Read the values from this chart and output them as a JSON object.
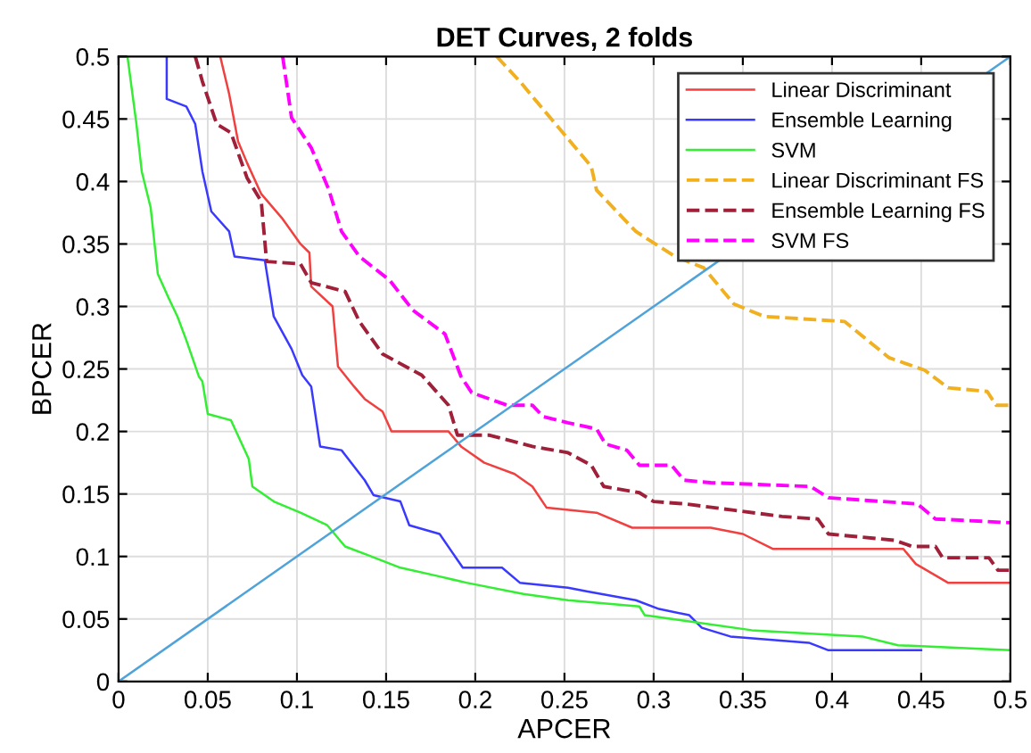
{
  "chart_data": {
    "type": "line",
    "title": "DET Curves, 2 folds",
    "xlabel": "APCER",
    "ylabel": "BPCER",
    "xlim": [
      0,
      0.5
    ],
    "ylim": [
      0,
      0.5
    ],
    "xticks": [
      0,
      0.05,
      0.1,
      0.15,
      0.2,
      0.25,
      0.3,
      0.35,
      0.4,
      0.45,
      0.5
    ],
    "yticks": [
      0,
      0.05,
      0.1,
      0.15,
      0.2,
      0.25,
      0.3,
      0.35,
      0.4,
      0.45,
      0.5
    ],
    "grid": true,
    "legend": "top right",
    "series": [
      {
        "name": "Linear Discriminant",
        "color": "#f04040",
        "line_style": "solid",
        "x": [
          0.057,
          0.062,
          0.067,
          0.072,
          0.08,
          0.092,
          0.102,
          0.107,
          0.108,
          0.12,
          0.123,
          0.132,
          0.138,
          0.148,
          0.153,
          0.185,
          0.192,
          0.205,
          0.222,
          0.232,
          0.24,
          0.268,
          0.288,
          0.332,
          0.35,
          0.367,
          0.44,
          0.447,
          0.465,
          0.5
        ],
        "values": [
          0.5,
          0.47,
          0.432,
          0.415,
          0.39,
          0.37,
          0.35,
          0.343,
          0.316,
          0.3,
          0.252,
          0.236,
          0.226,
          0.216,
          0.2,
          0.2,
          0.188,
          0.175,
          0.166,
          0.156,
          0.139,
          0.135,
          0.123,
          0.123,
          0.118,
          0.106,
          0.106,
          0.094,
          0.079,
          0.079
        ]
      },
      {
        "name": "Ensemble Learning",
        "color": "#3a3aff",
        "line_style": "solid",
        "x": [
          0.027,
          0.027,
          0.038,
          0.043,
          0.047,
          0.052,
          0.062,
          0.065,
          0.082,
          0.087,
          0.097,
          0.103,
          0.108,
          0.113,
          0.125,
          0.138,
          0.143,
          0.158,
          0.163,
          0.18,
          0.193,
          0.215,
          0.225,
          0.252,
          0.263,
          0.29,
          0.303,
          0.32,
          0.327,
          0.343,
          0.387,
          0.398,
          0.45
        ],
        "values": [
          0.5,
          0.466,
          0.46,
          0.446,
          0.408,
          0.376,
          0.36,
          0.34,
          0.337,
          0.292,
          0.266,
          0.245,
          0.236,
          0.188,
          0.185,
          0.161,
          0.149,
          0.144,
          0.125,
          0.118,
          0.091,
          0.091,
          0.079,
          0.075,
          0.072,
          0.065,
          0.058,
          0.053,
          0.043,
          0.036,
          0.031,
          0.025,
          0.025
        ]
      },
      {
        "name": "SVM",
        "color": "#33ee33",
        "line_style": "solid",
        "x": [
          0.005,
          0.01,
          0.013,
          0.018,
          0.022,
          0.028,
          0.033,
          0.038,
          0.045,
          0.047,
          0.05,
          0.063,
          0.073,
          0.075,
          0.087,
          0.102,
          0.117,
          0.127,
          0.14,
          0.158,
          0.18,
          0.195,
          0.227,
          0.252,
          0.292,
          0.295,
          0.32,
          0.355,
          0.417,
          0.437,
          0.5
        ],
        "values": [
          0.5,
          0.446,
          0.408,
          0.379,
          0.326,
          0.307,
          0.292,
          0.273,
          0.244,
          0.24,
          0.214,
          0.209,
          0.178,
          0.156,
          0.144,
          0.135,
          0.125,
          0.108,
          0.101,
          0.091,
          0.084,
          0.079,
          0.07,
          0.065,
          0.06,
          0.053,
          0.048,
          0.041,
          0.036,
          0.029,
          0.025
        ]
      },
      {
        "name": "Linear Discriminant FS",
        "color": "#f0b020",
        "line_style": "dashed",
        "x": [
          0.212,
          0.225,
          0.245,
          0.265,
          0.268,
          0.29,
          0.312,
          0.328,
          0.345,
          0.362,
          0.407,
          0.432,
          0.452,
          0.465,
          0.487,
          0.492,
          0.5
        ],
        "values": [
          0.5,
          0.48,
          0.446,
          0.412,
          0.393,
          0.36,
          0.34,
          0.331,
          0.302,
          0.292,
          0.288,
          0.259,
          0.249,
          0.235,
          0.232,
          0.221,
          0.221
        ]
      },
      {
        "name": "Ensemble Learning FS",
        "color": "#a0203a",
        "line_style": "dashed",
        "x": [
          0.043,
          0.047,
          0.055,
          0.063,
          0.072,
          0.08,
          0.083,
          0.102,
          0.108,
          0.127,
          0.135,
          0.148,
          0.17,
          0.185,
          0.19,
          0.208,
          0.232,
          0.252,
          0.265,
          0.272,
          0.292,
          0.3,
          0.318,
          0.345,
          0.372,
          0.392,
          0.398,
          0.435,
          0.445,
          0.458,
          0.462,
          0.488,
          0.493,
          0.5
        ],
        "values": [
          0.5,
          0.48,
          0.446,
          0.439,
          0.403,
          0.384,
          0.336,
          0.334,
          0.319,
          0.312,
          0.288,
          0.262,
          0.245,
          0.221,
          0.197,
          0.197,
          0.188,
          0.183,
          0.173,
          0.156,
          0.151,
          0.144,
          0.142,
          0.137,
          0.132,
          0.13,
          0.118,
          0.113,
          0.108,
          0.108,
          0.099,
          0.099,
          0.089,
          0.089
        ]
      },
      {
        "name": "SVM FS",
        "color": "#ff00ff",
        "line_style": "dashed",
        "x": [
          0.092,
          0.097,
          0.108,
          0.118,
          0.125,
          0.135,
          0.152,
          0.165,
          0.183,
          0.192,
          0.198,
          0.218,
          0.232,
          0.238,
          0.252,
          0.268,
          0.273,
          0.285,
          0.292,
          0.31,
          0.317,
          0.332,
          0.388,
          0.398,
          0.448,
          0.458,
          0.5
        ],
        "values": [
          0.5,
          0.451,
          0.427,
          0.393,
          0.36,
          0.34,
          0.321,
          0.297,
          0.278,
          0.244,
          0.231,
          0.221,
          0.221,
          0.212,
          0.207,
          0.202,
          0.19,
          0.185,
          0.173,
          0.173,
          0.161,
          0.159,
          0.156,
          0.147,
          0.142,
          0.13,
          0.127
        ]
      },
      {
        "color": "#4fa3d8",
        "line_style": "solid",
        "x": [
          0,
          0.5
        ],
        "values": [
          0,
          0.5
        ]
      }
    ]
  }
}
